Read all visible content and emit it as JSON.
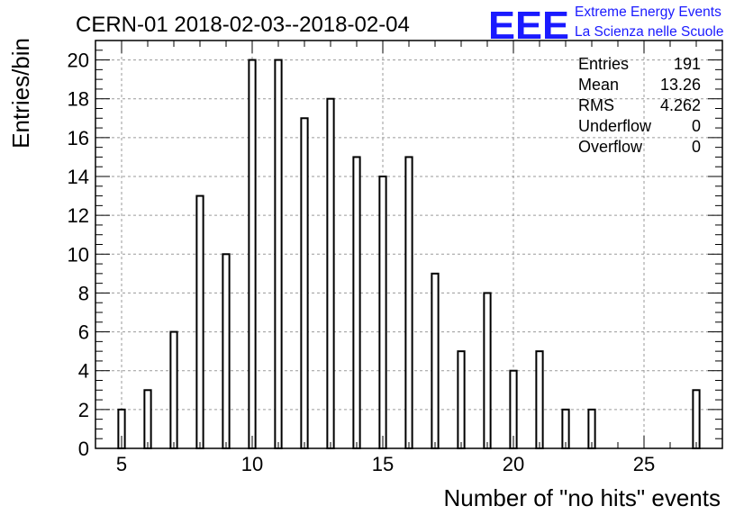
{
  "chart_data": {
    "type": "bar",
    "title": "CERN-01 2018-02-03--2018-02-04",
    "xlabel": "Number of \"no hits\" events",
    "ylabel": "Entries/bin",
    "xlim": [
      4,
      28
    ],
    "ylim": [
      0,
      21
    ],
    "x_ticks": [
      "5",
      "10",
      "15",
      "20",
      "25"
    ],
    "y_ticks": [
      "0",
      "2",
      "4",
      "6",
      "8",
      "10",
      "12",
      "14",
      "16",
      "18",
      "20"
    ],
    "grid": true,
    "bins": [
      {
        "x": 5,
        "value": 2
      },
      {
        "x": 6,
        "value": 3
      },
      {
        "x": 7,
        "value": 6
      },
      {
        "x": 8,
        "value": 13
      },
      {
        "x": 9,
        "value": 10
      },
      {
        "x": 10,
        "value": 20
      },
      {
        "x": 11,
        "value": 20
      },
      {
        "x": 12,
        "value": 17
      },
      {
        "x": 13,
        "value": 18
      },
      {
        "x": 14,
        "value": 15
      },
      {
        "x": 15,
        "value": 14
      },
      {
        "x": 16,
        "value": 15
      },
      {
        "x": 17,
        "value": 9
      },
      {
        "x": 18,
        "value": 5
      },
      {
        "x": 19,
        "value": 8
      },
      {
        "x": 20,
        "value": 4
      },
      {
        "x": 21,
        "value": 5
      },
      {
        "x": 22,
        "value": 2
      },
      {
        "x": 23,
        "value": 2
      },
      {
        "x": 27,
        "value": 3
      }
    ],
    "stats_box": {
      "placement": "top-right",
      "rows": [
        {
          "label": "Entries",
          "value": "191"
        },
        {
          "label": "Mean",
          "value": "13.26"
        },
        {
          "label": "RMS",
          "value": "4.262"
        },
        {
          "label": "Underflow",
          "value": "0"
        },
        {
          "label": "Overflow",
          "value": "0"
        }
      ]
    }
  },
  "logo": {
    "letters": "EEE",
    "line1": "Extreme Energy Events",
    "line2": "La Scienza nelle Scuole",
    "color": "#1a1aff"
  }
}
